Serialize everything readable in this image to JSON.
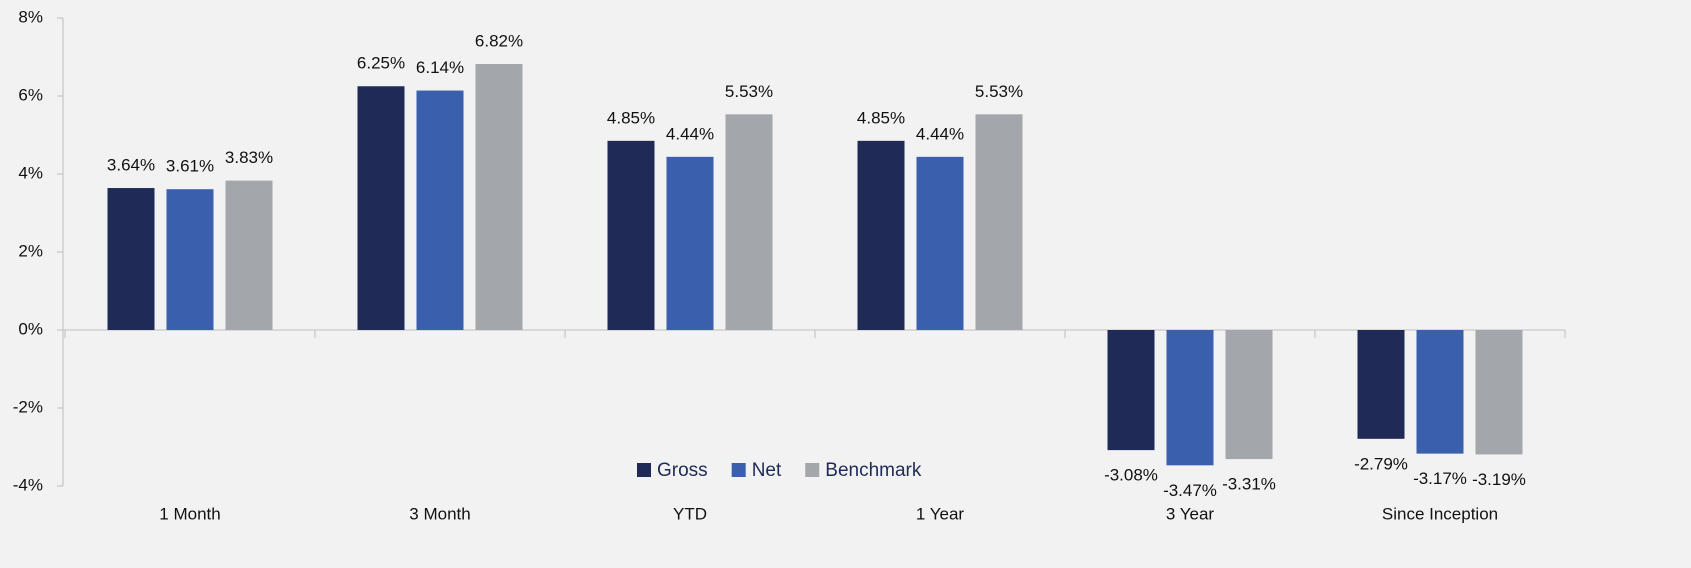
{
  "chart_data": {
    "type": "bar",
    "categories": [
      "1 Month",
      "3 Month",
      "YTD",
      "1 Year",
      "3 Year",
      "Since Inception"
    ],
    "series": [
      {
        "name": "Gross",
        "color": "#1f2a56",
        "values": [
          3.64,
          6.25,
          4.85,
          4.85,
          -3.08,
          -2.79
        ],
        "value_labels": [
          "3.64%",
          "6.25%",
          "4.85%",
          "4.85%",
          "-3.08%",
          "-2.79%"
        ]
      },
      {
        "name": "Net",
        "color": "#3a5fad",
        "values": [
          3.61,
          6.14,
          4.44,
          4.44,
          -3.47,
          -3.17
        ],
        "value_labels": [
          "3.61%",
          "6.14%",
          "4.44%",
          "4.44%",
          "-3.47%",
          "-3.17%"
        ]
      },
      {
        "name": "Benchmark",
        "color": "#a3a6ab",
        "values": [
          3.83,
          6.82,
          5.53,
          5.53,
          -3.31,
          -3.19
        ],
        "value_labels": [
          "3.83%",
          "6.82%",
          "5.53%",
          "5.53%",
          "-3.31%",
          "-3.19%"
        ]
      }
    ],
    "ylim": [
      -4,
      8
    ],
    "yticks": [
      {
        "value": -4,
        "label": "-4%"
      },
      {
        "value": -2,
        "label": "-2%"
      },
      {
        "value": 0,
        "label": "0%"
      },
      {
        "value": 2,
        "label": "2%"
      },
      {
        "value": 4,
        "label": "4%"
      },
      {
        "value": 6,
        "label": "6%"
      },
      {
        "value": 8,
        "label": "8%"
      }
    ],
    "grid": false
  }
}
